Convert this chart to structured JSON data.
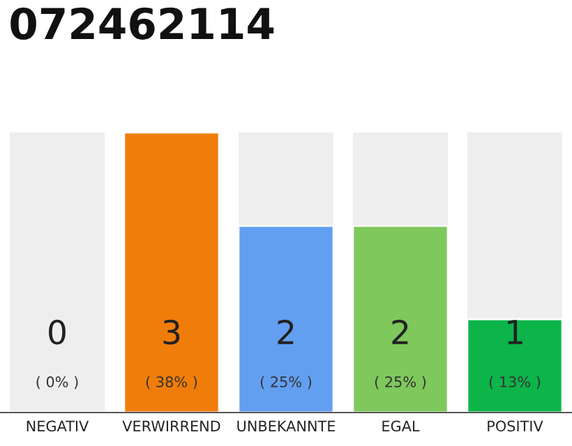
{
  "chart_data": {
    "type": "bar",
    "title": "072462114",
    "categories": [
      "NEGATIV",
      "VERWIRREND",
      "UNBEKANNTE",
      "EGAL",
      "POSITIV"
    ],
    "values": [
      0,
      3,
      2,
      2,
      1
    ],
    "colors": [
      null,
      "#f07d0a",
      "#629ff0",
      "#7ec85c",
      "#0db44a"
    ],
    "tick_labels": "x",
    "grid": false,
    "legend": false,
    "value_labels": [
      "0",
      "3",
      "2",
      "2",
      "1"
    ],
    "annotations": [
      "( 0% )",
      "( 38% )",
      "( 25% )",
      "( 25% )",
      "( 13% )"
    ]
  }
}
